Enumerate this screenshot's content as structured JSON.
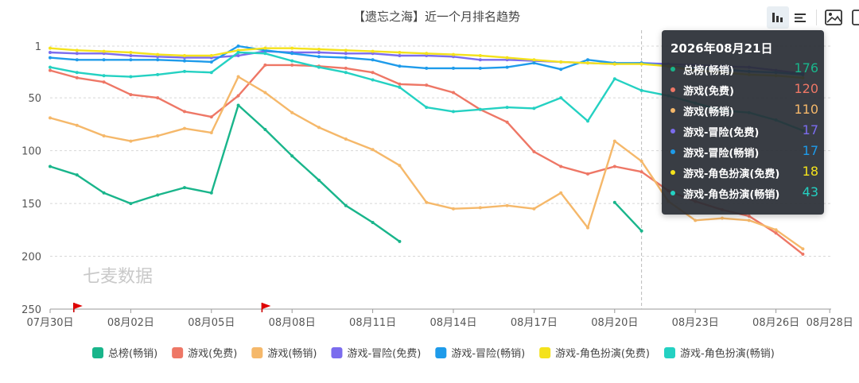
{
  "chart_data": {
    "type": "line",
    "title": "【遗忘之海】近一个月排名趋势",
    "x_start": "2026-07-30",
    "x_tick_labels": [
      "07月30日",
      "08月02日",
      "08月05日",
      "08月08日",
      "08月11日",
      "08月14日",
      "08月17日",
      "08月20日",
      "08月23日",
      "08月26日",
      "08月28日"
    ],
    "y_tick_labels": [
      "1",
      "50",
      "100",
      "150",
      "200",
      "250"
    ],
    "y_axis": {
      "inverse": true,
      "min": 1,
      "max": 250
    },
    "grid": "horizontal-dashed",
    "legend_position": "bottom",
    "watermark": "七麦数据",
    "flag_markers": [
      "07月31日",
      "08月07日"
    ],
    "crosshair_at": "08月21日",
    "series": [
      {
        "name": "总榜(畅销)",
        "color": "#19b58b",
        "values": [
          115,
          123,
          140,
          150,
          142,
          135,
          140,
          57,
          80,
          105,
          128,
          152,
          168,
          186,
          null,
          null,
          null,
          null,
          null,
          null,
          null,
          149,
          176,
          null,
          null,
          null,
          null,
          null
        ]
      },
      {
        "name": "游戏(免费)",
        "color": "#ee7766",
        "values": [
          24,
          31,
          35,
          47,
          50,
          63,
          68,
          48,
          19,
          19,
          20,
          22,
          26,
          37,
          38,
          45,
          61,
          73,
          101,
          115,
          122,
          115,
          120,
          138,
          148,
          156,
          162,
          178,
          198
        ]
      },
      {
        "name": "游戏(畅销)",
        "color": "#f5b86a",
        "values": [
          69,
          76,
          86,
          91,
          86,
          79,
          83,
          30,
          45,
          64,
          78,
          89,
          99,
          114,
          149,
          155,
          154,
          152,
          155,
          140,
          173,
          91,
          110,
          148,
          166,
          164,
          166,
          175,
          193
        ]
      },
      {
        "name": "游戏-冒险(免费)",
        "color": "#7b6cee",
        "values": [
          7,
          8,
          8,
          10,
          11,
          12,
          12,
          10,
          6,
          7,
          7,
          8,
          8,
          10,
          10,
          11,
          14,
          14,
          15,
          16,
          17,
          18,
          17,
          18,
          19,
          20,
          21,
          24,
          27
        ]
      },
      {
        "name": "游戏-冒险(畅销)",
        "color": "#1e9bea",
        "values": [
          12,
          14,
          14,
          14,
          14,
          15,
          16,
          1,
          5,
          8,
          11,
          12,
          14,
          20,
          22,
          22,
          22,
          21,
          17,
          23,
          14,
          17,
          17,
          20,
          22,
          23,
          25,
          26,
          28
        ]
      },
      {
        "name": "游戏-角色扮演(免费)",
        "color": "#f4e21c",
        "values": [
          3,
          5,
          6,
          7,
          9,
          10,
          10,
          5,
          3,
          3,
          4,
          5,
          6,
          7,
          8,
          9,
          10,
          12,
          14,
          16,
          17,
          18,
          18,
          20,
          24,
          26,
          28,
          29,
          31
        ]
      },
      {
        "name": "游戏-角色扮演(畅销)",
        "color": "#24d1c2",
        "values": [
          21,
          26,
          29,
          30,
          28,
          25,
          26,
          7,
          8,
          15,
          21,
          26,
          33,
          40,
          59,
          63,
          61,
          59,
          60,
          50,
          72,
          32,
          43,
          48,
          55,
          62,
          64,
          71,
          81
        ]
      }
    ]
  },
  "tooltip": {
    "date": "2026年08月21日",
    "rows": [
      {
        "name": "总榜(畅销)",
        "value": "176",
        "color": "#19b58b"
      },
      {
        "name": "游戏(免费)",
        "value": "120",
        "color": "#ee7766"
      },
      {
        "name": "游戏(畅销)",
        "value": "110",
        "color": "#f5b86a"
      },
      {
        "name": "游戏-冒险(免费)",
        "value": "17",
        "color": "#7b6cee"
      },
      {
        "name": "游戏-冒险(畅销)",
        "value": "17",
        "color": "#1e9bea"
      },
      {
        "name": "游戏-角色扮演(免费)",
        "value": "18",
        "color": "#f4e21c"
      },
      {
        "name": "游戏-角色扮演(畅销)",
        "value": "43",
        "color": "#24d1c2"
      }
    ]
  },
  "toolbar": {
    "icons": [
      "bar-chart-icon",
      "list-icon",
      "image-download-icon"
    ]
  }
}
